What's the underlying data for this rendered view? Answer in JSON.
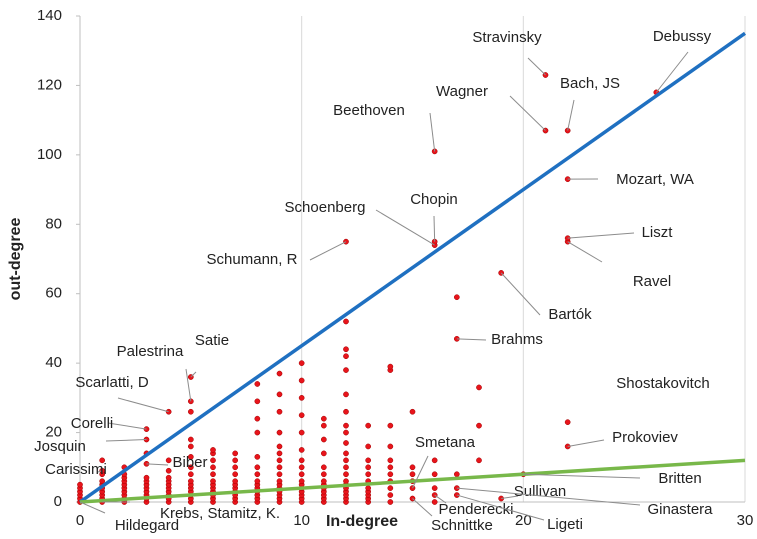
{
  "chart_data": {
    "type": "scatter",
    "xlabel": "In-degree",
    "ylabel": "out-degree",
    "xlim": [
      0,
      30
    ],
    "ylim": [
      0,
      140
    ],
    "xticks": [
      0,
      10,
      20,
      30
    ],
    "yticks": [
      0,
      20,
      40,
      60,
      80,
      100,
      120,
      140
    ],
    "grid": "x",
    "color": "#e8141b",
    "x": [
      0,
      0,
      0,
      0,
      0,
      0,
      1,
      1,
      1,
      1,
      1,
      1,
      1,
      1,
      1,
      1,
      2,
      2,
      2,
      2,
      2,
      2,
      2,
      2,
      2,
      2,
      3,
      3,
      3,
      3,
      3,
      3,
      3,
      3,
      3,
      3,
      3,
      3,
      4,
      4,
      4,
      4,
      4,
      4,
      4,
      4,
      4,
      4,
      4,
      5,
      5,
      5,
      5,
      5,
      5,
      5,
      5,
      5,
      5,
      5,
      5,
      5,
      5,
      5,
      6,
      6,
      6,
      6,
      6,
      6,
      6,
      6,
      6,
      6,
      6,
      6,
      7,
      7,
      7,
      7,
      7,
      7,
      7,
      7,
      7,
      7,
      7,
      8,
      8,
      8,
      8,
      8,
      8,
      8,
      8,
      8,
      8,
      8,
      8,
      8,
      8,
      9,
      9,
      9,
      9,
      9,
      9,
      9,
      9,
      9,
      9,
      9,
      9,
      9,
      9,
      9,
      9,
      10,
      10,
      10,
      10,
      10,
      10,
      10,
      10,
      10,
      10,
      10,
      10,
      10,
      10,
      10,
      10,
      11,
      11,
      11,
      11,
      11,
      11,
      11,
      11,
      11,
      11,
      11,
      11,
      11,
      12,
      12,
      12,
      12,
      12,
      12,
      12,
      12,
      12,
      12,
      12,
      12,
      12,
      12,
      12,
      12,
      12,
      12,
      12,
      12,
      12,
      13,
      13,
      13,
      13,
      13,
      13,
      13,
      13,
      13,
      13,
      13,
      14,
      14,
      14,
      14,
      14,
      14,
      14,
      14,
      14,
      14,
      14,
      15,
      15,
      15,
      15,
      15,
      15,
      16,
      16,
      16,
      16,
      16,
      16,
      16,
      16,
      17,
      17,
      17,
      17,
      17,
      18,
      18,
      18,
      19,
      19,
      20,
      21,
      21,
      22,
      22,
      22,
      22,
      22,
      22,
      26
    ],
    "values": [
      0,
      1,
      2,
      3,
      4,
      5,
      0,
      1,
      2,
      3,
      4,
      5,
      6,
      8,
      9,
      12,
      0,
      1,
      2,
      3,
      4,
      5,
      6,
      7,
      8,
      10,
      0,
      1,
      2,
      3,
      4,
      5,
      6,
      7,
      11,
      14,
      18,
      21,
      0,
      1,
      2,
      3,
      4,
      5,
      6,
      7,
      9,
      12,
      26,
      0,
      1,
      2,
      3,
      4,
      5,
      6,
      8,
      10,
      13,
      16,
      18,
      26,
      29,
      36,
      0,
      1,
      2,
      3,
      4,
      5,
      6,
      8,
      10,
      12,
      14,
      15,
      0,
      1,
      2,
      3,
      4,
      5,
      6,
      8,
      10,
      12,
      14,
      0,
      1,
      2,
      3,
      4,
      5,
      6,
      8,
      10,
      13,
      20,
      24,
      29,
      34,
      0,
      1,
      2,
      3,
      4,
      5,
      6,
      8,
      10,
      12,
      14,
      16,
      20,
      26,
      31,
      37,
      0,
      1,
      2,
      3,
      4,
      5,
      6,
      8,
      10,
      12,
      15,
      20,
      25,
      30,
      35,
      40,
      0,
      1,
      2,
      3,
      4,
      5,
      6,
      8,
      10,
      14,
      18,
      22,
      24,
      0,
      1,
      2,
      3,
      4,
      5,
      6,
      8,
      10,
      12,
      14,
      17,
      20,
      22,
      26,
      31,
      38,
      42,
      44,
      52,
      75,
      0,
      1,
      2,
      3,
      4,
      6,
      8,
      10,
      12,
      16,
      22,
      0,
      2,
      4,
      6,
      8,
      10,
      12,
      16,
      22,
      38,
      39,
      1,
      4,
      6,
      8,
      10,
      26,
      0,
      2,
      4,
      8,
      12,
      74,
      75,
      101,
      2,
      4,
      8,
      47,
      59,
      12,
      22,
      33,
      1,
      66,
      8,
      107,
      123,
      16,
      23,
      75,
      76,
      93,
      107,
      118
    ],
    "trendlines": [
      {
        "color": "#1f70c1",
        "x": [
          0,
          30
        ],
        "values": [
          0,
          135
        ]
      },
      {
        "color": "#78b84a",
        "x": [
          0,
          30
        ],
        "values": [
          0,
          12
        ]
      }
    ],
    "annotations": [
      {
        "text": "Stravinsky",
        "x": 21,
        "y": 123
      },
      {
        "text": "Debussy",
        "x": 26,
        "y": 118
      },
      {
        "text": "Wagner",
        "x": 21,
        "y": 107
      },
      {
        "text": "Bach, JS",
        "x": 22,
        "y": 107
      },
      {
        "text": "Beethoven",
        "x": 16,
        "y": 101
      },
      {
        "text": "Mozart, WA",
        "x": 22,
        "y": 93
      },
      {
        "text": "Schoenberg",
        "x": 16,
        "y": 74
      },
      {
        "text": "Chopin",
        "x": 16,
        "y": 75
      },
      {
        "text": "Schumann, R",
        "x": 12,
        "y": 75
      },
      {
        "text": "Liszt",
        "x": 22,
        "y": 76
      },
      {
        "text": "Ravel",
        "x": 22,
        "y": 75
      },
      {
        "text": "Bartók",
        "x": 19,
        "y": 66
      },
      {
        "text": "Brahms",
        "x": 17,
        "y": 47
      },
      {
        "text": "Satie",
        "x": 5,
        "y": 36
      },
      {
        "text": "Palestrina",
        "x": 5,
        "y": 29
      },
      {
        "text": "Scarlatti, D",
        "x": 4,
        "y": 26
      },
      {
        "text": "Corelli",
        "x": 3,
        "y": 21
      },
      {
        "text": "Josquin",
        "x": 3,
        "y": 18
      },
      {
        "text": "Carissimi",
        "x": 1,
        "y": 9
      },
      {
        "text": "Biber",
        "x": 3,
        "y": 11
      },
      {
        "text": "Hildegard",
        "x": 0,
        "y": 0
      },
      {
        "text": "Krebs, Stamitz, K.",
        "x": 1,
        "y": 0
      },
      {
        "text": "Shostakovitch",
        "x": 22,
        "y": 23
      },
      {
        "text": "Prokoviev",
        "x": 22,
        "y": 16
      },
      {
        "text": "Smetana",
        "x": 15,
        "y": 4
      },
      {
        "text": "Britten",
        "x": 20,
        "y": 8
      },
      {
        "text": "Sullivan",
        "x": 19,
        "y": 1
      },
      {
        "text": "Penderecki",
        "x": 16,
        "y": 2
      },
      {
        "text": "Ligeti",
        "x": 17,
        "y": 2
      },
      {
        "text": "Ginastera",
        "x": 17,
        "y": 4
      },
      {
        "text": "Schnittke",
        "x": 15,
        "y": 1
      }
    ]
  }
}
